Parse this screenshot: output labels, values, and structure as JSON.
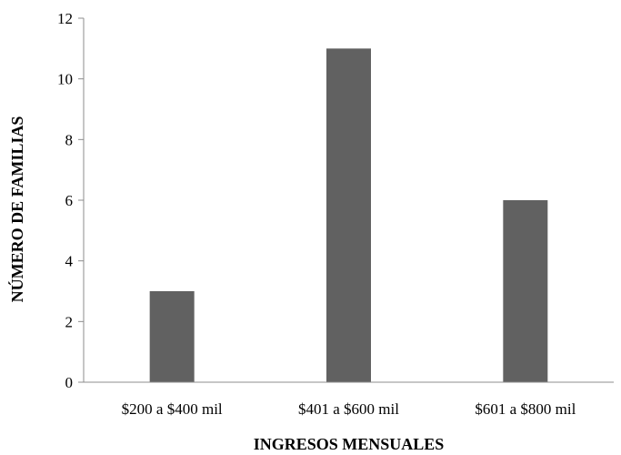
{
  "chart_data": {
    "type": "bar",
    "categories": [
      "$200 a $400 mil",
      "$401 a $600 mil",
      "$601 a $800 mil"
    ],
    "values": [
      3,
      11,
      6
    ],
    "xlabel": "INGRESOS MENSUALES",
    "ylabel": "NÚMERO DE FAMILIAS",
    "ylim": [
      0,
      12
    ],
    "yticks": [
      0,
      2,
      4,
      6,
      8,
      10,
      12
    ],
    "grid": false,
    "legend": "none",
    "bar_color": "#616161"
  }
}
